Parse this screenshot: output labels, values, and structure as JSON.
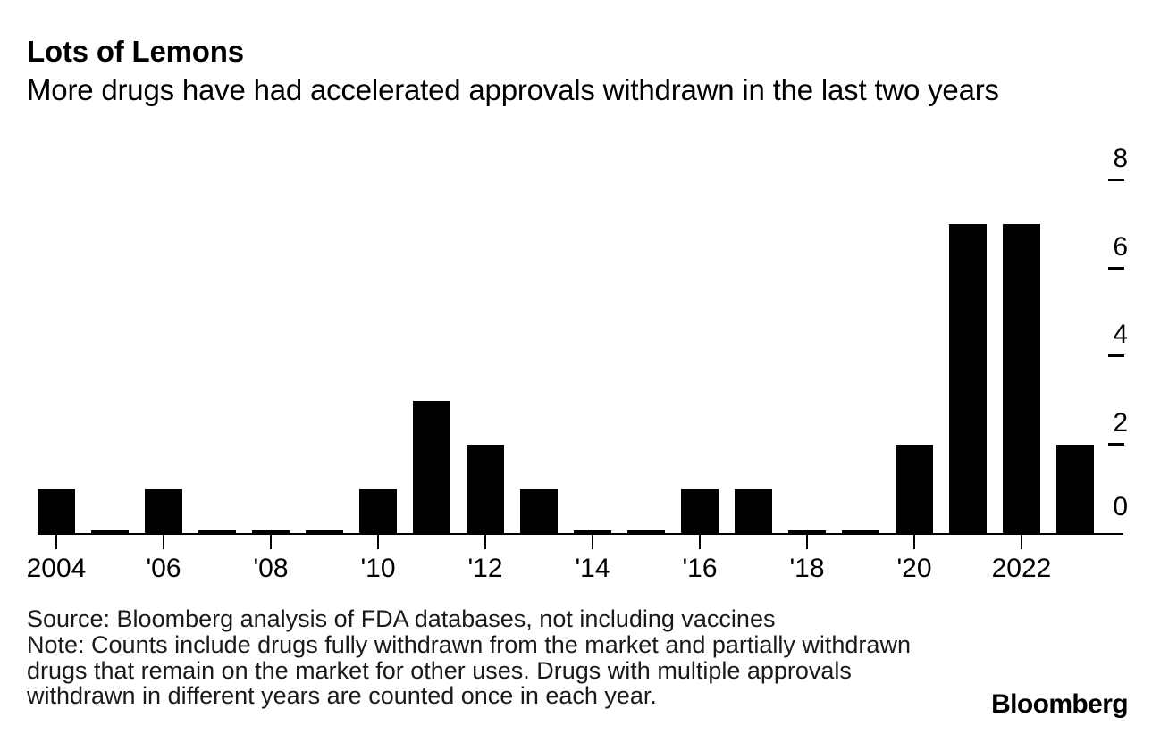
{
  "header": {
    "title": "Lots of Lemons",
    "subtitle": "More drugs have had accelerated approvals withdrawn in the last two years"
  },
  "chart_data": {
    "type": "bar",
    "title": "Lots of Lemons",
    "subtitle": "More drugs have had accelerated approvals withdrawn in the last two years",
    "xlabel": "",
    "ylabel": "",
    "categories": [
      2004,
      2005,
      2006,
      2007,
      2008,
      2009,
      2010,
      2011,
      2012,
      2013,
      2014,
      2015,
      2016,
      2017,
      2018,
      2019,
      2020,
      2021,
      2022,
      2023
    ],
    "values": [
      1,
      0,
      1,
      0,
      0,
      0,
      1,
      3,
      2,
      1,
      0,
      0,
      1,
      1,
      0,
      0,
      2,
      7,
      7,
      2
    ],
    "ylim": [
      0,
      8
    ],
    "yticks": [
      0,
      2,
      4,
      6,
      8
    ],
    "ytick_side": "right",
    "xticks": [
      {
        "year": 2004,
        "label": "2004"
      },
      {
        "year": 2006,
        "label": "'06"
      },
      {
        "year": 2008,
        "label": "'08"
      },
      {
        "year": 2010,
        "label": "'10"
      },
      {
        "year": 2012,
        "label": "'12"
      },
      {
        "year": 2014,
        "label": "'14"
      },
      {
        "year": 2016,
        "label": "'16"
      },
      {
        "year": 2018,
        "label": "'18"
      },
      {
        "year": 2020,
        "label": "'20"
      },
      {
        "year": 2022,
        "label": "2022"
      }
    ],
    "grid": false,
    "legend": "none",
    "bar_color": "#000000",
    "background_color": "#ffffff",
    "zero_values_shown_as_stubs": true
  },
  "footer": {
    "source": "Source: Bloomberg analysis of FDA databases, not including vaccines",
    "note": "Note: Counts include drugs fully withdrawn from the market and partially withdrawn drugs that remain on the market for other uses. Drugs with multiple approvals withdrawn in different years are counted once in each year.",
    "brand": "Bloomberg"
  }
}
